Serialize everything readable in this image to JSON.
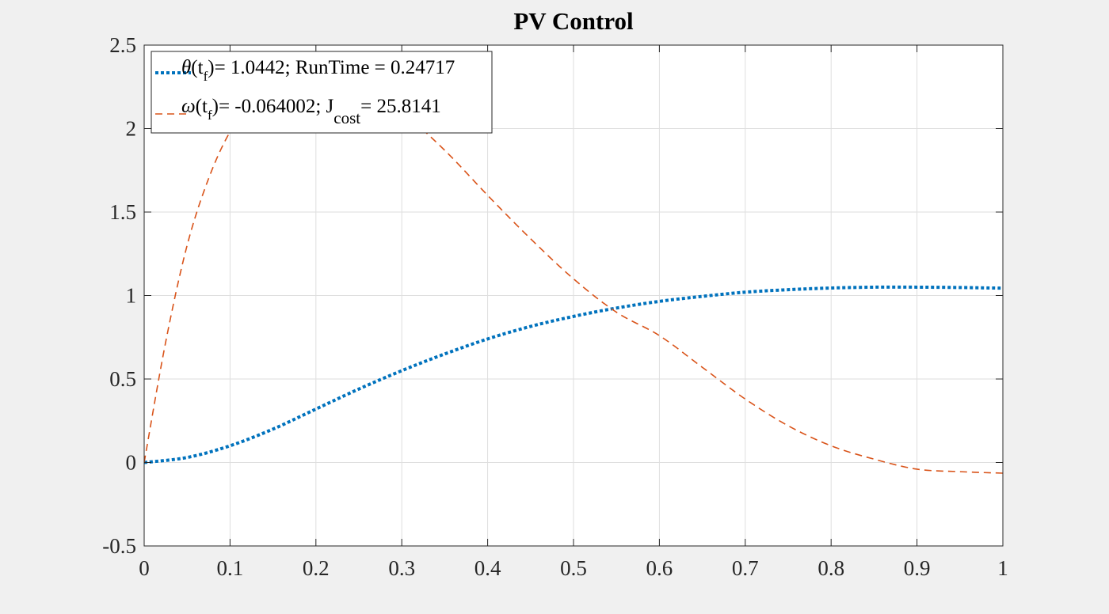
{
  "chart_data": {
    "type": "line",
    "title": "PV Control",
    "xlabel": "",
    "ylabel": "",
    "xlim": [
      0,
      1
    ],
    "ylim": [
      -0.5,
      2.5
    ],
    "grid": true,
    "legend_position": "top-left",
    "x_ticks": [
      0,
      0.1,
      0.2,
      0.3,
      0.4,
      0.5,
      0.6,
      0.7,
      0.8,
      0.9,
      1
    ],
    "x_tick_labels": [
      "0",
      "0.1",
      "0.2",
      "0.3",
      "0.4",
      "0.5",
      "0.6",
      "0.7",
      "0.8",
      "0.9",
      "1"
    ],
    "y_ticks": [
      -0.5,
      0,
      0.5,
      1,
      1.5,
      2,
      2.5
    ],
    "y_tick_labels": [
      "-0.5",
      "0",
      "0.5",
      "1",
      "1.5",
      "2",
      "2.5"
    ],
    "series": [
      {
        "legend": {
          "symbol": "θ",
          "open": "(t",
          "sub": "f",
          "close": ")",
          "rest": "= 1.0442; RunTime = 0.24717"
        },
        "color": "#0072bd",
        "style": "dotted",
        "x": [
          0,
          0.05,
          0.1,
          0.15,
          0.2,
          0.25,
          0.3,
          0.35,
          0.4,
          0.45,
          0.5,
          0.55,
          0.6,
          0.65,
          0.7,
          0.75,
          0.8,
          0.85,
          0.9,
          0.95,
          1
        ],
        "values": [
          0,
          0.03,
          0.1,
          0.2,
          0.32,
          0.44,
          0.55,
          0.65,
          0.74,
          0.815,
          0.875,
          0.925,
          0.965,
          0.995,
          1.02,
          1.035,
          1.045,
          1.05,
          1.05,
          1.048,
          1.044
        ]
      },
      {
        "legend": {
          "symbol": "ω",
          "open": "(t",
          "sub": "f",
          "close": ")",
          "rest": "= -0.064002; J",
          "sub2": "cost",
          "rest2": "= 25.8141"
        },
        "color": "#d95319",
        "style": "dashed",
        "x": [
          0,
          0.025,
          0.05,
          0.075,
          0.1,
          0.125,
          0.15,
          0.2,
          0.25,
          0.3,
          0.35,
          0.4,
          0.45,
          0.5,
          0.55,
          0.6,
          0.65,
          0.7,
          0.75,
          0.8,
          0.85,
          0.9,
          0.95,
          1
        ],
        "values": [
          0,
          0.72,
          1.3,
          1.7,
          1.98,
          2.14,
          2.22,
          2.3,
          2.27,
          2.1,
          1.87,
          1.6,
          1.34,
          1.1,
          0.9,
          0.76,
          0.57,
          0.38,
          0.22,
          0.1,
          0.02,
          -0.04,
          -0.055,
          -0.064
        ]
      }
    ]
  }
}
